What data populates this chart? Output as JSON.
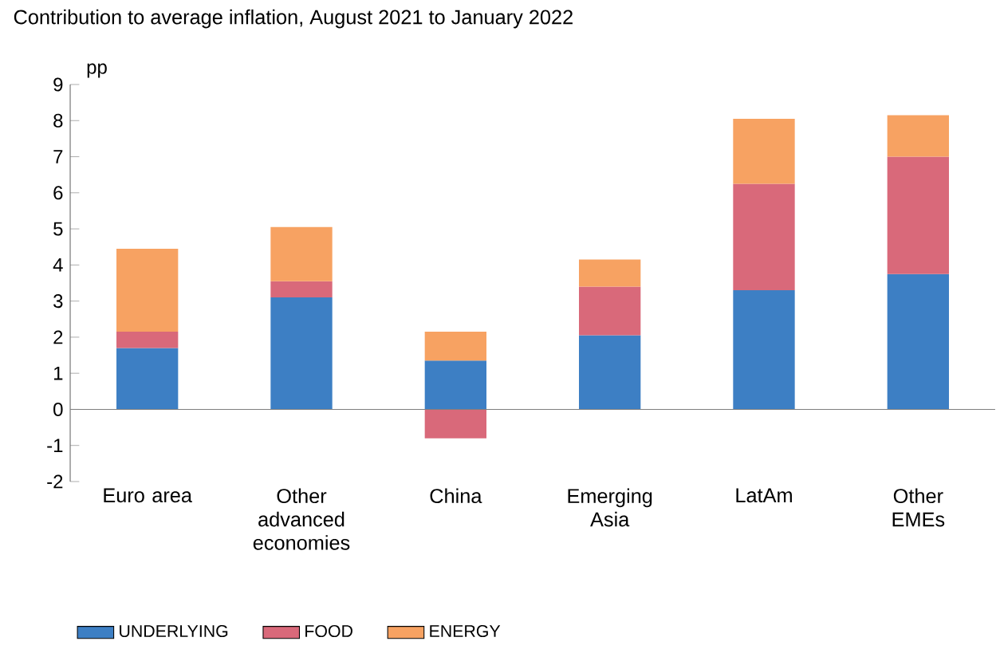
{
  "chart_data": {
    "type": "bar",
    "title": "Contribution to average inflation, August 2021 to January 2022",
    "ylabel": "pp",
    "categories": [
      "Euro area",
      "Other advanced economies",
      "China",
      "Emerging Asia",
      "LatAm",
      "Other EMEs"
    ],
    "stacked": true,
    "series": [
      {
        "name": "UNDERLYING",
        "color": "#3d7fc4",
        "values": [
          1.7,
          3.1,
          1.35,
          2.05,
          3.3,
          3.75
        ]
      },
      {
        "name": "FOOD",
        "color": "#d9697a",
        "values": [
          0.45,
          0.45,
          -0.8,
          1.35,
          2.95,
          3.25
        ]
      },
      {
        "name": "ENERGY",
        "color": "#f7a262",
        "values": [
          2.3,
          1.5,
          0.8,
          0.75,
          1.8,
          1.15
        ]
      }
    ],
    "ylim": [
      -2,
      9
    ],
    "yticks": [
      -2,
      -1,
      0,
      1,
      2,
      3,
      4,
      5,
      6,
      7,
      8,
      9
    ],
    "ref_lines": [
      {
        "axis": "y",
        "value": 0,
        "color": "#7f7f7f"
      }
    ],
    "grid": false,
    "legend": "bottom"
  }
}
